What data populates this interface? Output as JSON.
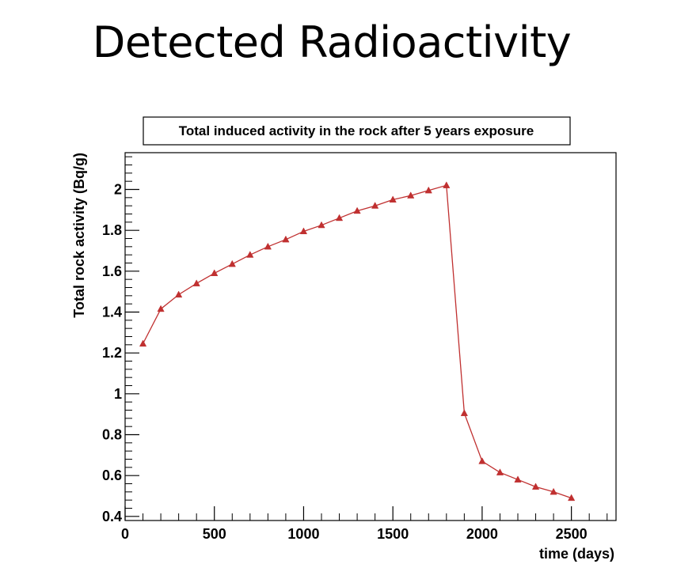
{
  "slide": {
    "title": "Detected Radioactivity"
  },
  "chart_data": {
    "type": "line",
    "title": "Total induced activity in the rock after 5 years exposure",
    "xlabel": "time (days)",
    "ylabel": "Total rock activity (Bq/g)",
    "xlim": [
      0,
      2750
    ],
    "ylim": [
      0.38,
      2.18
    ],
    "xticks": [
      0,
      500,
      1000,
      1500,
      2000,
      2500
    ],
    "xtick_labels": [
      "0",
      "500",
      "1000",
      "1500",
      "2000",
      "2500"
    ],
    "yticks": [
      0.4,
      0.6,
      0.8,
      1,
      1.2,
      1.4,
      1.6,
      1.8,
      2
    ],
    "ytick_labels": [
      "0.4",
      "0.6",
      "0.8",
      "1",
      "1.2",
      "1.4",
      "1.6",
      "1.8",
      "2"
    ],
    "marker": "triangle",
    "color": "#c03030",
    "series": [
      {
        "name": "Total induced activity",
        "x": [
          100,
          200,
          300,
          400,
          500,
          600,
          700,
          800,
          900,
          1000,
          1100,
          1200,
          1300,
          1400,
          1500,
          1600,
          1700,
          1800,
          1900,
          2000,
          2100,
          2200,
          2300,
          2400,
          2500
        ],
        "y": [
          1.245,
          1.415,
          1.485,
          1.54,
          1.59,
          1.635,
          1.68,
          1.72,
          1.755,
          1.795,
          1.825,
          1.86,
          1.895,
          1.92,
          1.95,
          1.97,
          1.995,
          2.02,
          0.905,
          0.67,
          0.615,
          0.58,
          0.545,
          0.52,
          0.49
        ]
      }
    ]
  }
}
